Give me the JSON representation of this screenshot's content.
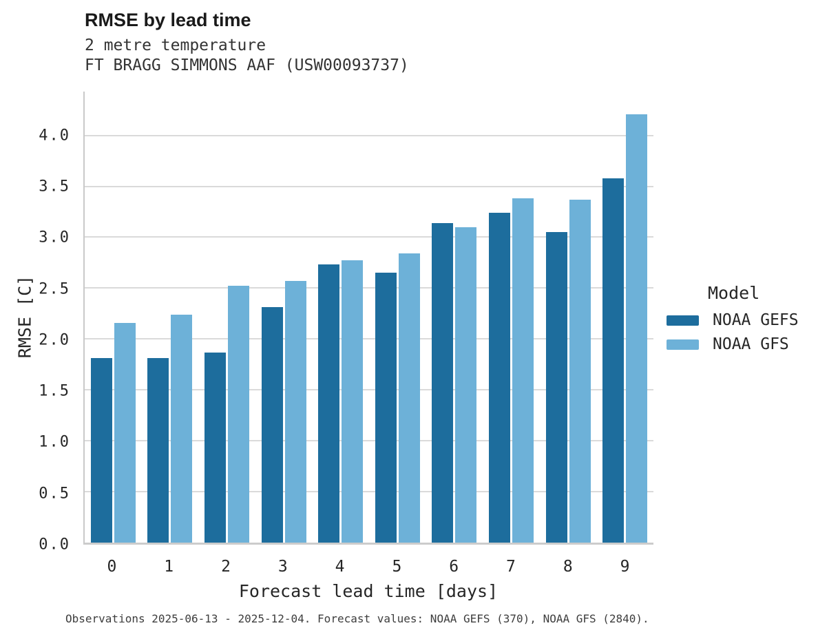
{
  "title": "RMSE by lead time",
  "subtitle_line1": "2 metre temperature",
  "subtitle_line2": "FT BRAGG SIMMONS AAF (USW00093737)",
  "footer": "Observations 2025-06-13 - 2025-12-04. Forecast values: NOAA GEFS (370), NOAA GFS (2840).",
  "colors": {
    "gefs": "#1d6d9d",
    "gfs": "#6db1d8",
    "gridline": "#dadada",
    "axis": "#c9c9c9"
  },
  "legend": {
    "title": "Model",
    "items": [
      {
        "label": "NOAA GEFS",
        "color": "#1d6d9d"
      },
      {
        "label": "NOAA GFS",
        "color": "#6db1d8"
      }
    ]
  },
  "chart_data": {
    "type": "bar",
    "title": "RMSE by lead time",
    "subtitle": "2 metre temperature — FT BRAGG SIMMONS AAF (USW00093737)",
    "xlabel": "Forecast lead time [days]",
    "ylabel": "RMSE [C]",
    "categories": [
      "0",
      "1",
      "2",
      "3",
      "4",
      "5",
      "6",
      "7",
      "8",
      "9"
    ],
    "series": [
      {
        "name": "NOAA GEFS",
        "color": "#1d6d9d",
        "values": [
          1.81,
          1.81,
          1.87,
          2.31,
          2.73,
          2.65,
          3.14,
          3.24,
          3.05,
          3.58
        ]
      },
      {
        "name": "NOAA GFS",
        "color": "#6db1d8",
        "values": [
          2.16,
          2.24,
          2.52,
          2.57,
          2.77,
          2.84,
          3.1,
          3.38,
          3.37,
          4.21
        ]
      }
    ],
    "ylim": [
      0,
      4.43
    ],
    "yticks": [
      0.0,
      0.5,
      1.0,
      1.5,
      2.0,
      2.5,
      3.0,
      3.5,
      4.0
    ],
    "grid": true,
    "legend_position": "right"
  }
}
